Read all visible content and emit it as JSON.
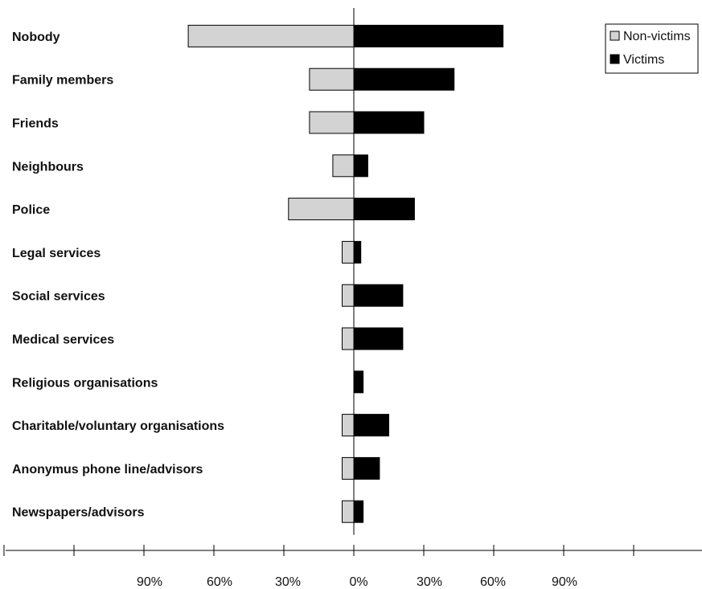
{
  "chart_data": {
    "type": "bar",
    "orientation": "horizontal-diverging",
    "categories": [
      "Nobody",
      "Family members",
      "Friends",
      "Neighbours",
      "Police",
      "Legal services",
      "Social services",
      "Medical services",
      "Religious organisations",
      "Charitable/voluntary organisations",
      "Anonymus phone line/advisors",
      "Newspapers/advisors"
    ],
    "series": [
      {
        "name": "Non-victims",
        "color": "#d3d3d3",
        "side": "left",
        "values": [
          71,
          19,
          19,
          9,
          28,
          5,
          5,
          5,
          0,
          5,
          5,
          5
        ]
      },
      {
        "name": "Victims",
        "color": "#000000",
        "side": "right",
        "values": [
          64,
          43,
          30,
          6,
          26,
          3,
          21,
          21,
          4,
          15,
          11,
          4
        ]
      }
    ],
    "tick_labels": [
      "90%",
      "60%",
      "30%",
      "0%",
      "30%",
      "60%",
      "90%"
    ],
    "xlim": [
      -150,
      150
    ],
    "grid": false,
    "legend_position": "top-right"
  }
}
